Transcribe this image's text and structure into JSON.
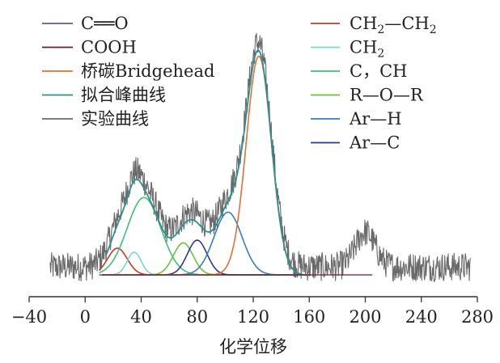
{
  "chart_data": {
    "type": "line",
    "title": "",
    "xlabel": "化学位移",
    "ylabel": "",
    "xlim": [
      -40,
      280
    ],
    "xticks": [
      -40,
      0,
      40,
      80,
      120,
      160,
      200,
      240,
      280
    ],
    "ylim": [
      0,
      1.1
    ],
    "legend_placement": "top (two columns)",
    "legend_left": [
      {
        "label": "C══O",
        "color": "#5b5c8a"
      },
      {
        "label": "COOH",
        "color": "#6b1f2a"
      },
      {
        "label": "桥碳Bridgehead",
        "color": "#e0703a"
      },
      {
        "label": "拟合峰曲线",
        "color": "#2f8f8f"
      },
      {
        "label": "实验曲线",
        "color": "#6a6a6a"
      }
    ],
    "legend_right": [
      {
        "label_main": "CH",
        "sub1": "2",
        "mid": "—CH",
        "sub2": "2",
        "color": "#c0392b"
      },
      {
        "label_main": "CH",
        "sub1": "2",
        "mid": "",
        "sub2": "",
        "color": "#7fd6c6"
      },
      {
        "label_main": "C，CH",
        "sub1": "",
        "mid": "",
        "sub2": "",
        "color": "#3fbf7a"
      },
      {
        "label_main": "R—O—R",
        "sub1": "",
        "mid": "",
        "sub2": "",
        "color": "#6cc040"
      },
      {
        "label_main": "Ar—H",
        "sub1": "",
        "mid": "",
        "sub2": "",
        "color": "#3a7bbf"
      },
      {
        "label_main": "Ar—C",
        "sub1": "",
        "mid": "",
        "sub2": "",
        "color": "#2a3a8a"
      }
    ],
    "series": [
      {
        "name": "CH2—CH2",
        "kind": "gaussian",
        "center": 23,
        "height": 0.1,
        "width": 7,
        "color": "#c0392b"
      },
      {
        "name": "CH2",
        "kind": "gaussian",
        "center": 35,
        "height": 0.085,
        "width": 5,
        "color": "#7fd6c6"
      },
      {
        "name": "C，CH",
        "kind": "gaussian",
        "center": 42,
        "height": 0.29,
        "width": 12,
        "color": "#3fbf7a"
      },
      {
        "name": "R—O—R",
        "kind": "gaussian",
        "center": 70,
        "height": 0.12,
        "width": 7,
        "color": "#6cc040"
      },
      {
        "name": "Ar—C",
        "kind": "gaussian",
        "center": 80,
        "height": 0.13,
        "width": 7,
        "color": "#2a3a8a"
      },
      {
        "name": "Ar—H",
        "kind": "gaussian",
        "center": 102,
        "height": 0.235,
        "width": 10,
        "color": "#3a7bbf"
      },
      {
        "name": "桥碳Bridgehead",
        "kind": "gaussian",
        "center": 124,
        "height": 0.82,
        "width": 9,
        "color": "#e0703a"
      },
      {
        "name": "拟合峰曲线",
        "kind": "fit",
        "range": [
          15,
          155
        ],
        "color": "#2f8f8f"
      },
      {
        "name": "实验曲线",
        "kind": "experimental",
        "range": [
          -25,
          275
        ],
        "color": "#6a6a6a"
      }
    ]
  }
}
